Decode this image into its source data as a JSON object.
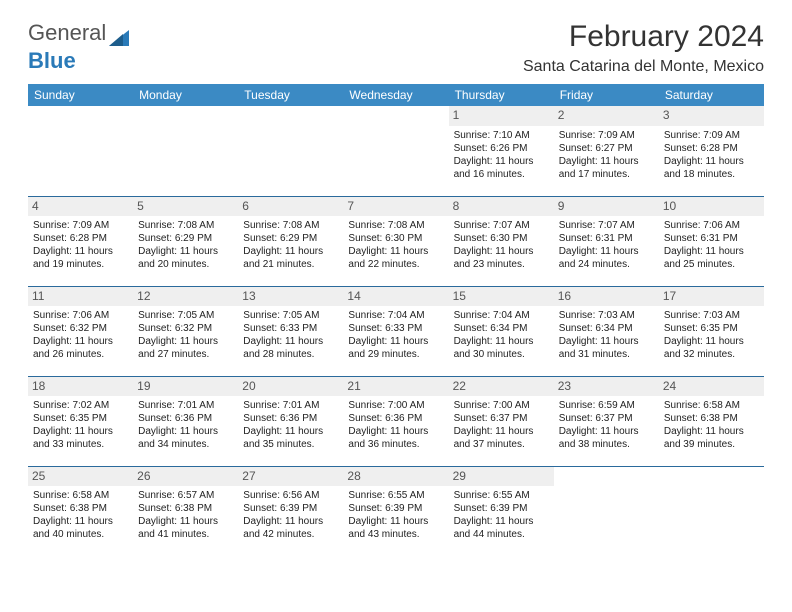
{
  "brand": {
    "part1": "General",
    "part2": "Blue"
  },
  "title": "February 2024",
  "location": "Santa Catarina del Monte, Mexico",
  "colors": {
    "header_bg": "#3b8ac4",
    "row_border": "#2a6a9c",
    "daynum_bg": "#efefef",
    "brand_blue": "#2a7ab8",
    "text": "#222222",
    "bg": "#ffffff"
  },
  "day_headers": [
    "Sunday",
    "Monday",
    "Tuesday",
    "Wednesday",
    "Thursday",
    "Friday",
    "Saturday"
  ],
  "weeks": [
    [
      null,
      null,
      null,
      null,
      {
        "n": "1",
        "sr": "7:10 AM",
        "ss": "6:26 PM",
        "dl": "11 hours and 16 minutes."
      },
      {
        "n": "2",
        "sr": "7:09 AM",
        "ss": "6:27 PM",
        "dl": "11 hours and 17 minutes."
      },
      {
        "n": "3",
        "sr": "7:09 AM",
        "ss": "6:28 PM",
        "dl": "11 hours and 18 minutes."
      }
    ],
    [
      {
        "n": "4",
        "sr": "7:09 AM",
        "ss": "6:28 PM",
        "dl": "11 hours and 19 minutes."
      },
      {
        "n": "5",
        "sr": "7:08 AM",
        "ss": "6:29 PM",
        "dl": "11 hours and 20 minutes."
      },
      {
        "n": "6",
        "sr": "7:08 AM",
        "ss": "6:29 PM",
        "dl": "11 hours and 21 minutes."
      },
      {
        "n": "7",
        "sr": "7:08 AM",
        "ss": "6:30 PM",
        "dl": "11 hours and 22 minutes."
      },
      {
        "n": "8",
        "sr": "7:07 AM",
        "ss": "6:30 PM",
        "dl": "11 hours and 23 minutes."
      },
      {
        "n": "9",
        "sr": "7:07 AM",
        "ss": "6:31 PM",
        "dl": "11 hours and 24 minutes."
      },
      {
        "n": "10",
        "sr": "7:06 AM",
        "ss": "6:31 PM",
        "dl": "11 hours and 25 minutes."
      }
    ],
    [
      {
        "n": "11",
        "sr": "7:06 AM",
        "ss": "6:32 PM",
        "dl": "11 hours and 26 minutes."
      },
      {
        "n": "12",
        "sr": "7:05 AM",
        "ss": "6:32 PM",
        "dl": "11 hours and 27 minutes."
      },
      {
        "n": "13",
        "sr": "7:05 AM",
        "ss": "6:33 PM",
        "dl": "11 hours and 28 minutes."
      },
      {
        "n": "14",
        "sr": "7:04 AM",
        "ss": "6:33 PM",
        "dl": "11 hours and 29 minutes."
      },
      {
        "n": "15",
        "sr": "7:04 AM",
        "ss": "6:34 PM",
        "dl": "11 hours and 30 minutes."
      },
      {
        "n": "16",
        "sr": "7:03 AM",
        "ss": "6:34 PM",
        "dl": "11 hours and 31 minutes."
      },
      {
        "n": "17",
        "sr": "7:03 AM",
        "ss": "6:35 PM",
        "dl": "11 hours and 32 minutes."
      }
    ],
    [
      {
        "n": "18",
        "sr": "7:02 AM",
        "ss": "6:35 PM",
        "dl": "11 hours and 33 minutes."
      },
      {
        "n": "19",
        "sr": "7:01 AM",
        "ss": "6:36 PM",
        "dl": "11 hours and 34 minutes."
      },
      {
        "n": "20",
        "sr": "7:01 AM",
        "ss": "6:36 PM",
        "dl": "11 hours and 35 minutes."
      },
      {
        "n": "21",
        "sr": "7:00 AM",
        "ss": "6:36 PM",
        "dl": "11 hours and 36 minutes."
      },
      {
        "n": "22",
        "sr": "7:00 AM",
        "ss": "6:37 PM",
        "dl": "11 hours and 37 minutes."
      },
      {
        "n": "23",
        "sr": "6:59 AM",
        "ss": "6:37 PM",
        "dl": "11 hours and 38 minutes."
      },
      {
        "n": "24",
        "sr": "6:58 AM",
        "ss": "6:38 PM",
        "dl": "11 hours and 39 minutes."
      }
    ],
    [
      {
        "n": "25",
        "sr": "6:58 AM",
        "ss": "6:38 PM",
        "dl": "11 hours and 40 minutes."
      },
      {
        "n": "26",
        "sr": "6:57 AM",
        "ss": "6:38 PM",
        "dl": "11 hours and 41 minutes."
      },
      {
        "n": "27",
        "sr": "6:56 AM",
        "ss": "6:39 PM",
        "dl": "11 hours and 42 minutes."
      },
      {
        "n": "28",
        "sr": "6:55 AM",
        "ss": "6:39 PM",
        "dl": "11 hours and 43 minutes."
      },
      {
        "n": "29",
        "sr": "6:55 AM",
        "ss": "6:39 PM",
        "dl": "11 hours and 44 minutes."
      },
      null,
      null
    ]
  ],
  "labels": {
    "sunrise": "Sunrise:",
    "sunset": "Sunset:",
    "daylight": "Daylight:"
  }
}
